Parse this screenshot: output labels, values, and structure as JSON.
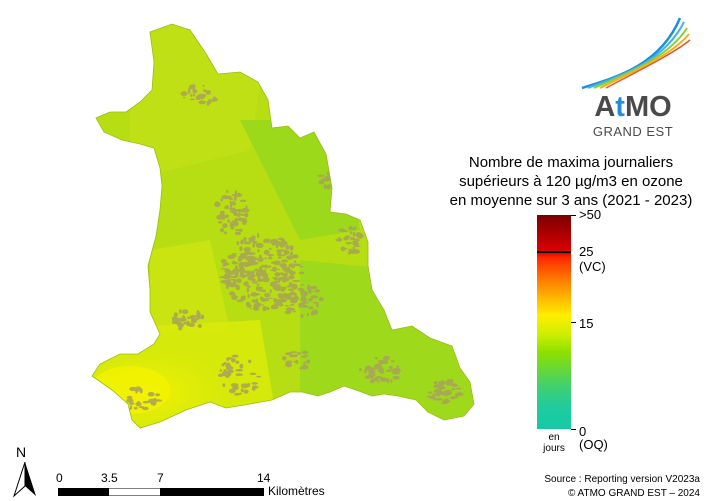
{
  "logo": {
    "brand_prefix": "A",
    "brand_accent": "t",
    "brand_suffix": "MO",
    "subtitle": "GRAND EST"
  },
  "legend": {
    "title_line1": "Nombre de maxima journaliers",
    "title_line2": "supérieurs à 120 µg/m3 en ozone",
    "title_line3": "en moyenne sur 3 ans (2021 - 2023)",
    "labels": {
      "max": ">50",
      "vc_value": "25",
      "vc_tag": "(VC)",
      "mid": "15",
      "min": "0",
      "oq_tag": "(OQ)"
    },
    "units_line1": "en",
    "units_line2": "jours",
    "scale_range": [
      0,
      50
    ],
    "colors": {
      "top": "#7b0000",
      "red": "#e20000",
      "orange": "#ff7a00",
      "yellow": "#ffee00",
      "green": "#8fe000",
      "teal": "#17c9a5"
    }
  },
  "north_arrow": {
    "label": "N"
  },
  "scale_bar": {
    "ticks": [
      "0",
      "3.5",
      "7",
      "14"
    ],
    "unit": "Kilomètres"
  },
  "source": {
    "line1": "Source : Reporting version V2023a",
    "line2": "© ATMO GRAND EST – 2024"
  },
  "map_colors": {
    "base": "#b6de12",
    "north": "#c2e018",
    "east": "#94d61e",
    "southwest": "#e6ef06",
    "urban": "#a9a15a"
  }
}
